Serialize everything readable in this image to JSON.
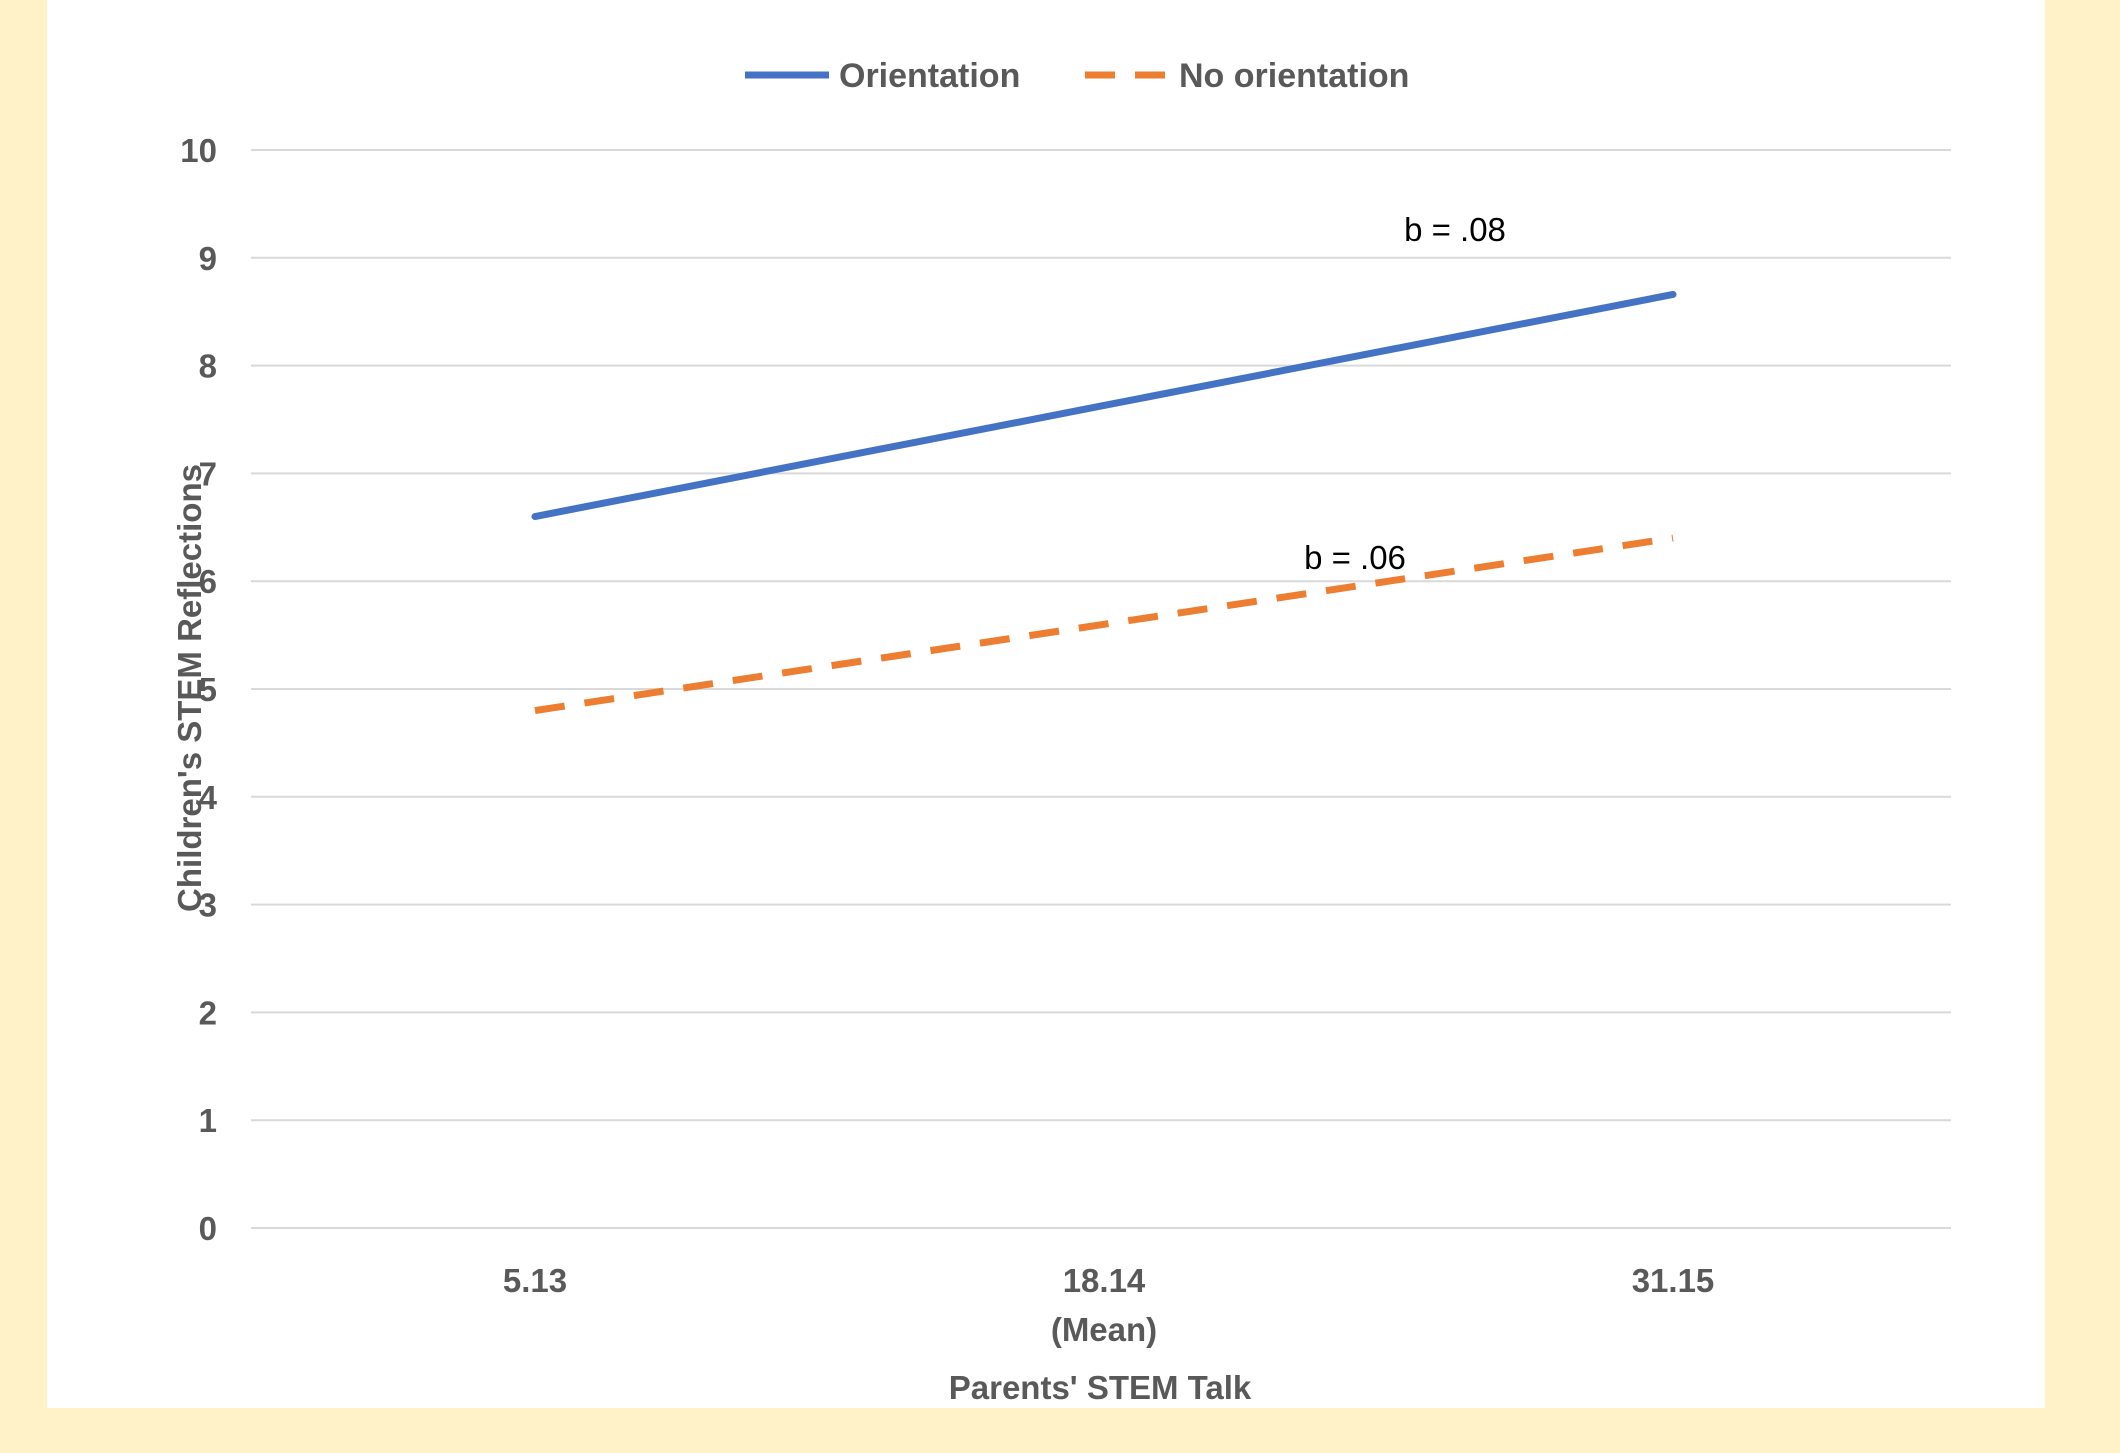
{
  "chart_data": {
    "type": "line",
    "title": "",
    "xlabel": "Parents' STEM Talk",
    "ylabel": "Children's STEM Reflections",
    "categories": [
      "5.13",
      "18.14",
      "31.15"
    ],
    "category_sublabels": [
      "",
      "(Mean)",
      ""
    ],
    "x": [
      5.13,
      18.14,
      31.15
    ],
    "ylim": [
      0,
      10
    ],
    "yticks": [
      "0",
      "1",
      "2",
      "3",
      "4",
      "5",
      "6",
      "7",
      "8",
      "9",
      "10"
    ],
    "grid": true,
    "legend_position": "top",
    "series": [
      {
        "name": "Orientation",
        "values": [
          6.6,
          7.63,
          8.66
        ],
        "color": "#4472c4",
        "style": "solid"
      },
      {
        "name": "No orientation",
        "values": [
          4.8,
          5.6,
          6.4
        ],
        "color": "#ed7d31",
        "style": "dashed"
      }
    ],
    "annotations": [
      {
        "text": "b = .08",
        "series": "Orientation"
      },
      {
        "text": "b = .06",
        "series": "No orientation"
      }
    ]
  }
}
